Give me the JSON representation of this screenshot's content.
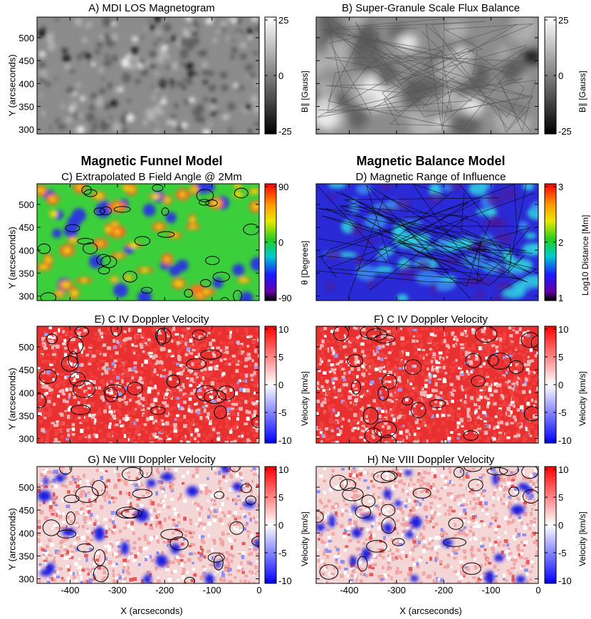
{
  "labels": {
    "row_model_left": "Magnetic Funnel Model",
    "row_model_right": "Magnetic Balance Model",
    "y_axis": "Y (arcseconds)",
    "x_axis": "X (arcseconds)"
  },
  "panels": [
    {
      "id": "A",
      "title": "A) MDI LOS Magnetogram",
      "cbar_label": "B∥ [Gauss]",
      "cbar_ticks": [
        "25",
        "0",
        "-25"
      ],
      "cmap": "gray"
    },
    {
      "id": "B",
      "title": "B) Super-Granule Scale Flux Balance",
      "cbar_label": "B∥ [Gauss]",
      "cbar_ticks": [
        "25",
        "0",
        "-25"
      ],
      "cmap": "gray"
    },
    {
      "id": "C",
      "title": "C) Extrapolated B Field Angle @ 2Mm",
      "cbar_label": "θ [Degrees]",
      "cbar_ticks": [
        "90",
        "0",
        "-90"
      ],
      "cmap": "rainbow"
    },
    {
      "id": "D",
      "title": "D) Magnetic Range of Influence",
      "cbar_label": "Log10 Distance [Mm]",
      "cbar_ticks": [
        "3",
        "2",
        "1"
      ],
      "cmap": "rainbow"
    },
    {
      "id": "E",
      "title": "E) C IV Doppler Velocity",
      "cbar_label": "Velocity [km/s]",
      "cbar_ticks": [
        "10",
        "5",
        "0",
        "-5",
        "-10"
      ],
      "cmap": "bwr"
    },
    {
      "id": "F",
      "title": "F) C IV Doppler Velocity",
      "cbar_label": "Velocity [km/s]",
      "cbar_ticks": [
        "10",
        "5",
        "0",
        "-5",
        "-10"
      ],
      "cmap": "bwr"
    },
    {
      "id": "G",
      "title": "G) Ne VIII Doppler Velocity",
      "cbar_label": "Velocity [km/s]",
      "cbar_ticks": [
        "10",
        "5",
        "0",
        "-5",
        "-10"
      ],
      "cmap": "bwr"
    },
    {
      "id": "H",
      "title": "H) Ne VIII Doppler Velocity",
      "cbar_label": "Velocity [km/s]",
      "cbar_ticks": [
        "10",
        "5",
        "0",
        "-5",
        "-10"
      ],
      "cmap": "bwr"
    }
  ],
  "chart_data": {
    "type": "heatmap",
    "x_ticks": [
      "-400",
      "-300",
      "-200",
      "-100",
      "0"
    ],
    "y_ticks": [
      "500",
      "450",
      "400",
      "350",
      "300"
    ],
    "xlim": [
      -470,
      0
    ],
    "ylim": [
      290,
      545
    ],
    "panels": [
      "A",
      "B",
      "C",
      "D",
      "E",
      "F",
      "G",
      "H"
    ]
  },
  "colors": {
    "gray_bg": "#8c8c8c",
    "funnel_bg": "#3ccf3c",
    "balance_bg": "#2a2ad6",
    "doppler_red": "#e83030",
    "doppler_light": "#f5d6d6"
  }
}
